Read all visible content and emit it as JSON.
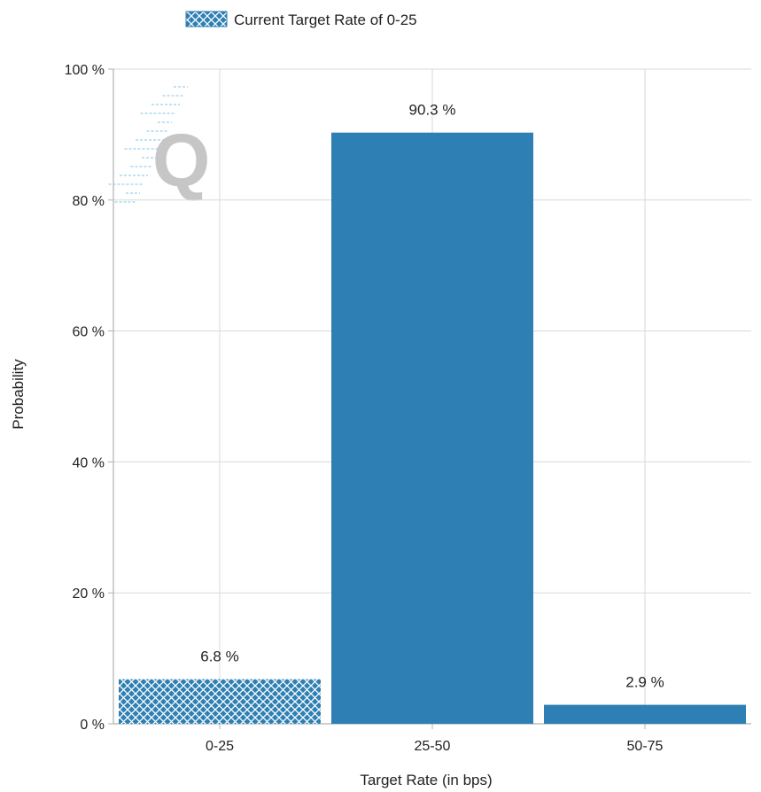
{
  "chart_data": {
    "type": "bar",
    "categories": [
      "0-25",
      "25-50",
      "50-75"
    ],
    "values": [
      6.8,
      90.3,
      2.9
    ],
    "value_labels": [
      "6.8 %",
      "90.3 %",
      "2.9 %"
    ],
    "highlighted_category": "0-25",
    "ylabel": "Probability",
    "xlabel": "Target Rate (in bps)",
    "ylim": [
      0,
      100
    ],
    "yticks": [
      0,
      20,
      40,
      60,
      80,
      100
    ],
    "ytick_labels": [
      "0 %",
      "20 %",
      "40 %",
      "60 %",
      "80 %",
      "100 %"
    ],
    "grid": true,
    "legend": {
      "label": "Current Target Rate of 0-25",
      "placement": "top"
    },
    "watermark_letter": "Q",
    "colors": {
      "bar": "#2e7fb4",
      "hatch_fg": "#ffffff",
      "grid": "#d9d9d9",
      "axis": "#b0b0b0",
      "watermark": "#c6c6c6",
      "watermark_lines": "#bfe3f3"
    }
  }
}
